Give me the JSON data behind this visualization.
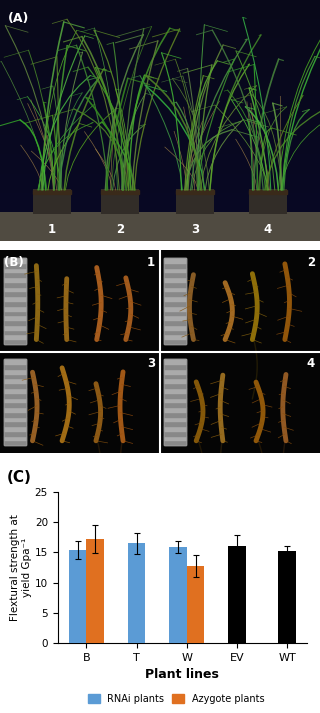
{
  "panel_A_label": "(A)",
  "panel_B_label": "(B)",
  "panel_C_label": "(C)",
  "bar_categories": [
    "B",
    "T",
    "W",
    "EV",
    "WT"
  ],
  "rnai_values": [
    15.4,
    16.5,
    15.9,
    16.1,
    15.2
  ],
  "azygote_values": [
    17.2,
    null,
    12.8,
    null,
    null
  ],
  "rnai_errors": [
    1.5,
    1.8,
    1.0,
    1.8,
    0.8
  ],
  "azygote_errors": [
    2.3,
    null,
    1.8,
    null,
    null
  ],
  "rnai_color": "#5B9BD5",
  "azygote_color": "#E07020",
  "control_color": "#000000",
  "ylabel": "Flextural strength at\nyield Gpa⁻¹",
  "xlabel": "Plant lines",
  "ylim": [
    0,
    25
  ],
  "yticks": [
    0,
    5,
    10,
    15,
    20,
    25
  ],
  "legend_rnai": "RNAi plants",
  "legend_azygote": "Azygote plants",
  "bar_width": 0.35,
  "title_C": "(C)",
  "fig_width": 3.2,
  "fig_height": 7.13,
  "bg_color_A": "#0a0820",
  "bg_color_B": "#000000",
  "pot_color": "#2a2a2a",
  "plant_color_main": "#4a8a3a",
  "plant_color_light": "#5aaa4a",
  "spike_color": "#8B6420",
  "ruler_color": "#c8c8c8",
  "label_color_white": "#ffffff"
}
